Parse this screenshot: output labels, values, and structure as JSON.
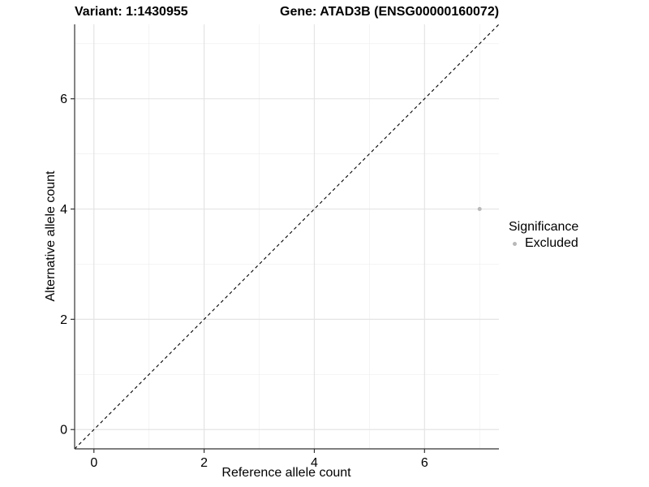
{
  "header": {
    "variant_title": "Variant: 1:1430955",
    "gene_title": "Gene: ATAD3B (ENSG00000160072)"
  },
  "axes": {
    "x_label": "Reference allele count",
    "y_label": "Alternative allele count"
  },
  "legend": {
    "title": "Significance",
    "entries": [
      {
        "label": "Excluded",
        "color": "#b9b9b9"
      }
    ]
  },
  "chart_data": {
    "type": "scatter",
    "title": "Variant: 1:1430955   Gene: ATAD3B (ENSG00000160072)",
    "xlabel": "Reference allele count",
    "ylabel": "Alternative allele count",
    "xlim": [
      -0.35,
      7.35
    ],
    "ylim": [
      -0.35,
      7.35
    ],
    "x_ticks": [
      0,
      2,
      4,
      6
    ],
    "y_ticks": [
      0,
      2,
      4,
      6
    ],
    "grid": true,
    "legend_position": "right",
    "series": [
      {
        "name": "Excluded",
        "color": "#b9b9b9",
        "points": [
          [
            7,
            4
          ]
        ]
      }
    ],
    "reference_line": {
      "kind": "identity",
      "slope": 1,
      "intercept": 0,
      "style": "dashed",
      "color": "#000000"
    }
  },
  "colors": {
    "background": "#ffffff",
    "grid_major": "#e4e4e4",
    "grid_minor": "#efefef",
    "axis_line": "#333333",
    "tick_text": "#000000",
    "point": "#b9b9b9"
  }
}
